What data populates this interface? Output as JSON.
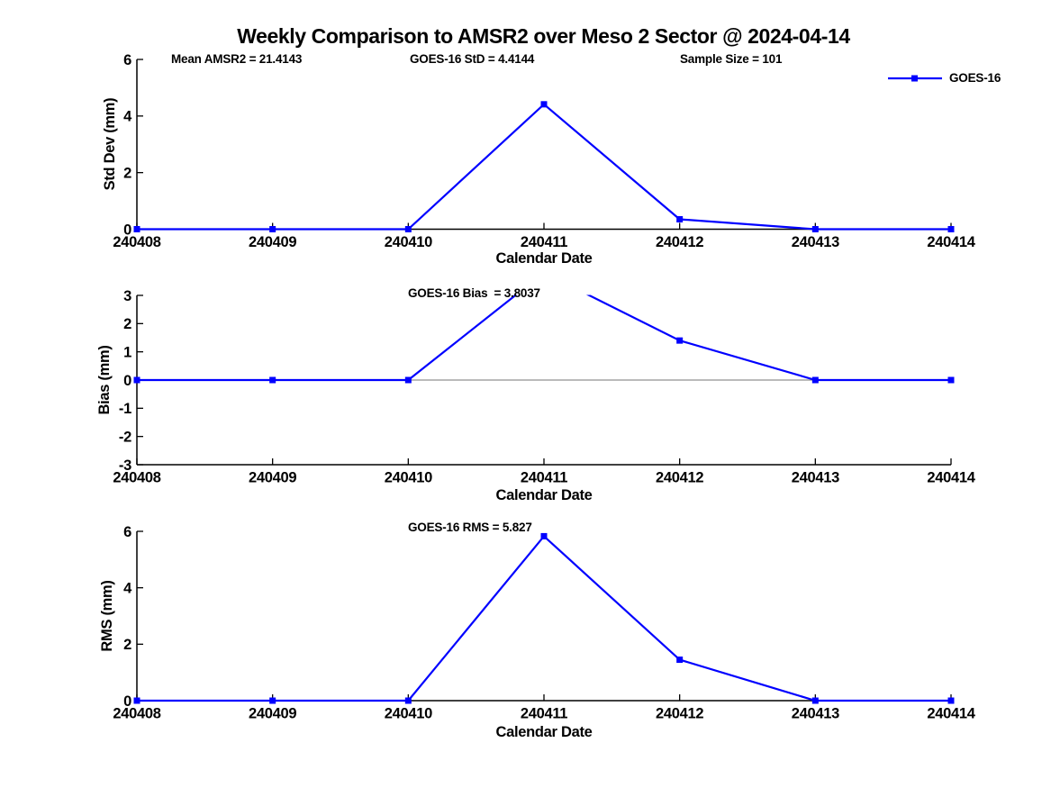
{
  "title": "Weekly Comparison to AMSR2 over Meso 2 Sector @ 2024-04-14",
  "colors": {
    "series_blue": "#0000ff",
    "axis_black": "#000000",
    "zero_line_gray": "#909090"
  },
  "legend": {
    "label": "GOES-16",
    "position": "top-right",
    "marker": "square"
  },
  "chart_data": [
    {
      "type": "line",
      "ylabel": "Std Dev (mm)",
      "xlabel": "Calendar Date",
      "x": [
        "240408",
        "240409",
        "240410",
        "240411",
        "240412",
        "240413",
        "240414"
      ],
      "series": [
        {
          "name": "GOES-16",
          "color": "#0000ff",
          "marker": "square",
          "values": [
            0,
            0,
            0,
            4.4144,
            0.35,
            0,
            0
          ]
        }
      ],
      "ylim": [
        0,
        6
      ],
      "yticks": [
        0,
        2,
        4,
        6
      ],
      "grid": false,
      "show_zero_line": false,
      "annotations": [
        "Mean AMSR2 = 21.4143",
        "GOES-16 StD = 4.4144",
        "Sample Size = 101"
      ]
    },
    {
      "type": "line",
      "ylabel": "Bias (mm)",
      "xlabel": "Calendar Date",
      "x": [
        "240408",
        "240409",
        "240410",
        "240411",
        "240412",
        "240413",
        "240414"
      ],
      "series": [
        {
          "name": "GOES-16",
          "color": "#0000ff",
          "marker": "square",
          "values": [
            0,
            0,
            0,
            3.8037,
            1.4,
            0,
            0
          ]
        }
      ],
      "ylim": [
        -3,
        3
      ],
      "yticks": [
        -3,
        -2,
        -1,
        0,
        1,
        2,
        3
      ],
      "grid": false,
      "show_zero_line": true,
      "annotations": [
        "GOES-16 Bias  = 3.8037"
      ]
    },
    {
      "type": "line",
      "ylabel": "RMS (mm)",
      "xlabel": "Calendar Date",
      "x": [
        "240408",
        "240409",
        "240410",
        "240411",
        "240412",
        "240413",
        "240414"
      ],
      "series": [
        {
          "name": "GOES-16",
          "color": "#0000ff",
          "marker": "square",
          "values": [
            0,
            0,
            0,
            5.827,
            1.45,
            0,
            0
          ]
        }
      ],
      "ylim": [
        0,
        6
      ],
      "yticks": [
        0,
        2,
        4,
        6
      ],
      "grid": false,
      "show_zero_line": false,
      "annotations": [
        "GOES-16 RMS = 5.827"
      ]
    }
  ]
}
